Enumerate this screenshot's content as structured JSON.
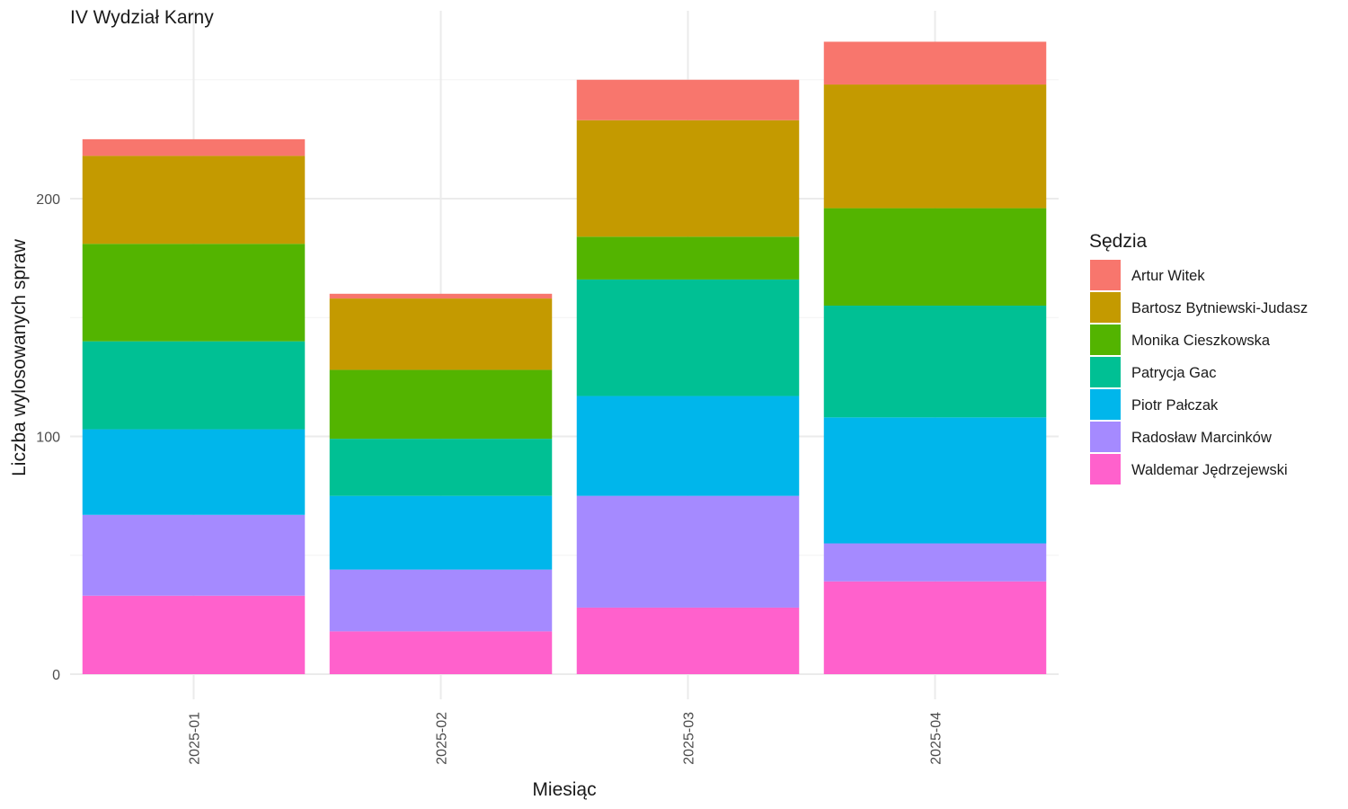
{
  "chart_data": {
    "type": "bar",
    "stacked": true,
    "title": "IV Wydział Karny",
    "xlabel": "Miesiąc",
    "ylabel": "Liczba wylosowanych spraw",
    "categories": [
      "2025-01",
      "2025-02",
      "2025-03",
      "2025-04"
    ],
    "ylim": [
      0,
      280
    ],
    "yticks": [
      0,
      100,
      200
    ],
    "grid": true,
    "legend": {
      "title": "Sędzia",
      "position": "right"
    },
    "series": [
      {
        "name": "Waldemar Jędrzejewski",
        "color": "#FF61CC",
        "values": [
          33,
          18,
          28,
          39
        ]
      },
      {
        "name": "Radosław Marcinków",
        "color": "#A58AFF",
        "values": [
          34,
          26,
          47,
          16
        ]
      },
      {
        "name": "Piotr Pałczak",
        "color": "#00B6EB",
        "values": [
          36,
          31,
          42,
          53
        ]
      },
      {
        "name": "Patrycja Gac",
        "color": "#00C094",
        "values": [
          37,
          24,
          49,
          47
        ]
      },
      {
        "name": "Monika Cieszkowska",
        "color": "#53B400",
        "values": [
          41,
          29,
          18,
          41
        ]
      },
      {
        "name": "Bartosz Bytniewski-Judasz",
        "color": "#C49A00",
        "values": [
          37,
          30,
          49,
          52
        ]
      },
      {
        "name": "Artur Witek",
        "color": "#F8766D",
        "values": [
          7,
          2,
          17,
          18
        ]
      }
    ],
    "legend_order": [
      "Artur Witek",
      "Bartosz Bytniewski-Judasz",
      "Monika Cieszkowska",
      "Patrycja Gac",
      "Piotr Pałczak",
      "Radosław Marcinków",
      "Waldemar Jędrzejewski"
    ]
  }
}
